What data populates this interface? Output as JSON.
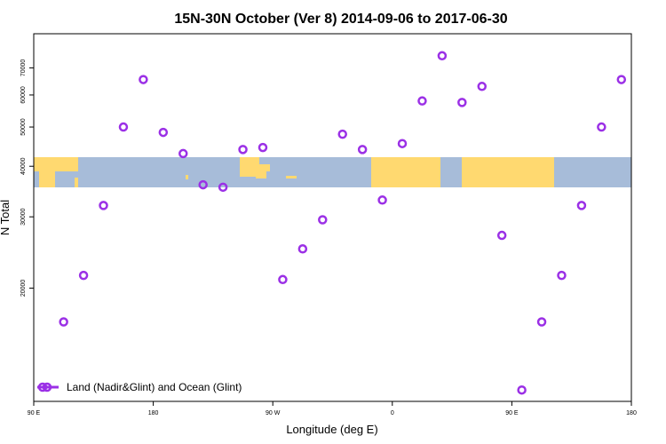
{
  "chart_data": {
    "type": "scatter",
    "title": "15N-30N October (Ver 8)   2014-09-06 to 2017-06-30",
    "xlabel": "Longitude (deg E)",
    "ylabel": "N Total",
    "x_axis_direction": "increasing eastward, wrapping from 90 E through 180 to 180",
    "x_ticks": [
      {
        "lon": 90,
        "label": "90 E"
      },
      {
        "lon": 180,
        "label": "180"
      },
      {
        "lon": 270,
        "label": "90 W"
      },
      {
        "lon": 360,
        "label": "0"
      },
      {
        "lon": 450,
        "label": "90 E"
      },
      {
        "lon": 540,
        "label": "180"
      }
    ],
    "xlim": [
      90,
      540
    ],
    "y_scale": "log",
    "y_ticks": [
      20000,
      30000,
      40000,
      50000,
      60000,
      70000
    ],
    "y_tick_labels": [
      "20000",
      "30000",
      "40000",
      "50000",
      "60000",
      "70000"
    ],
    "ylim": [
      10500,
      85000
    ],
    "legend": "bottom-left",
    "series": [
      {
        "name": "Land (Nadir&Glint) and Ocean (Glint)",
        "color": "#9b30e6",
        "x": [
          112.5,
          127.5,
          142.5,
          157.5,
          172.5,
          187.5,
          202.5,
          217.5,
          232.5,
          247.5,
          262.5,
          277.5,
          292.5,
          307.5,
          322.5,
          337.5,
          352.5,
          367.5,
          382.5,
          397.5,
          412.5,
          427.5,
          442.5,
          457.5,
          472.5,
          487.5,
          502.5,
          517.5,
          532.5
        ],
        "y": [
          16500,
          21500,
          32000,
          50000,
          65500,
          48500,
          43000,
          36000,
          35500,
          44000,
          44500,
          21000,
          25000,
          29500,
          48000,
          44000,
          33000,
          45500,
          58000,
          75000,
          57500,
          63000,
          27000,
          11200,
          16500,
          21500,
          32000,
          50000,
          65500
        ]
      }
    ]
  }
}
